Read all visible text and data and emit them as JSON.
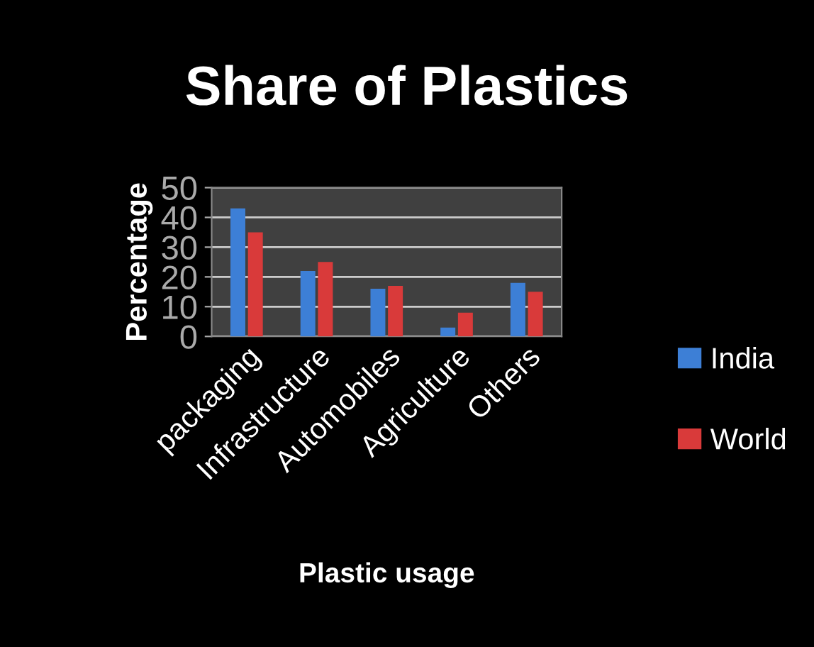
{
  "chart_data": {
    "type": "bar",
    "title": "Share of Plastics",
    "xlabel": "Plastic usage",
    "ylabel": "Percentage",
    "categories": [
      "packaging",
      "Infrastructure",
      "Automobiles",
      "Agriculture",
      "Others"
    ],
    "series": [
      {
        "name": "India",
        "color": "#3d7fd6",
        "values": [
          43,
          22,
          16,
          3,
          18
        ]
      },
      {
        "name": "World",
        "color": "#d93a3a",
        "values": [
          35,
          25,
          17,
          8,
          15
        ]
      }
    ],
    "ylim": [
      0,
      50
    ],
    "yticks": [
      0,
      10,
      20,
      30,
      40,
      50
    ],
    "grid": "y",
    "legend": "right"
  }
}
